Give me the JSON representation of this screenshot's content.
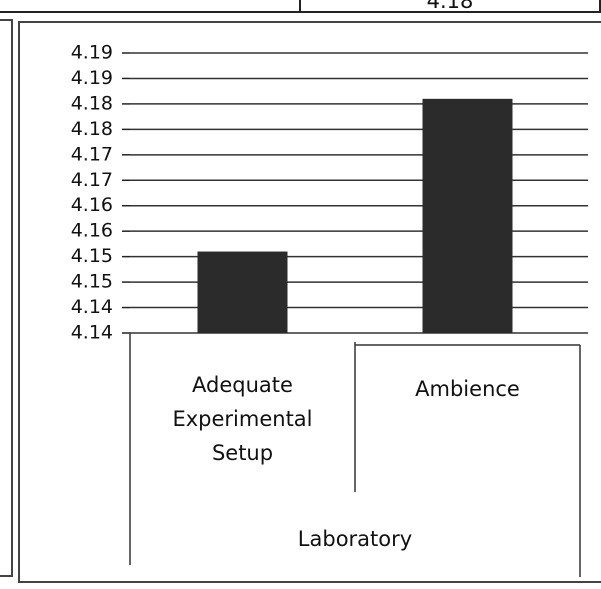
{
  "table_fragment": {
    "cells": [
      "4.18"
    ]
  },
  "chart_data": {
    "type": "bar",
    "categories": [
      "Adequate Experimental Setup",
      "Ambience"
    ],
    "group_label": "Laboratory",
    "values": [
      4.156,
      4.186
    ],
    "color": "#2b2b2b",
    "ylim": [
      4.14,
      4.195
    ],
    "yticks": [
      4.14,
      {
        "value": 4.145,
        "label": "4.14"
      },
      4.15,
      {
        "value": 4.155,
        "label": "4.15"
      },
      4.16,
      {
        "value": 4.165,
        "label": "4.16"
      },
      4.17,
      {
        "value": 4.175,
        "label": "4.17"
      },
      4.18,
      {
        "value": 4.185,
        "label": "4.18"
      },
      4.19,
      {
        "value": 4.195,
        "label": "4.19"
      }
    ],
    "grid": true
  }
}
